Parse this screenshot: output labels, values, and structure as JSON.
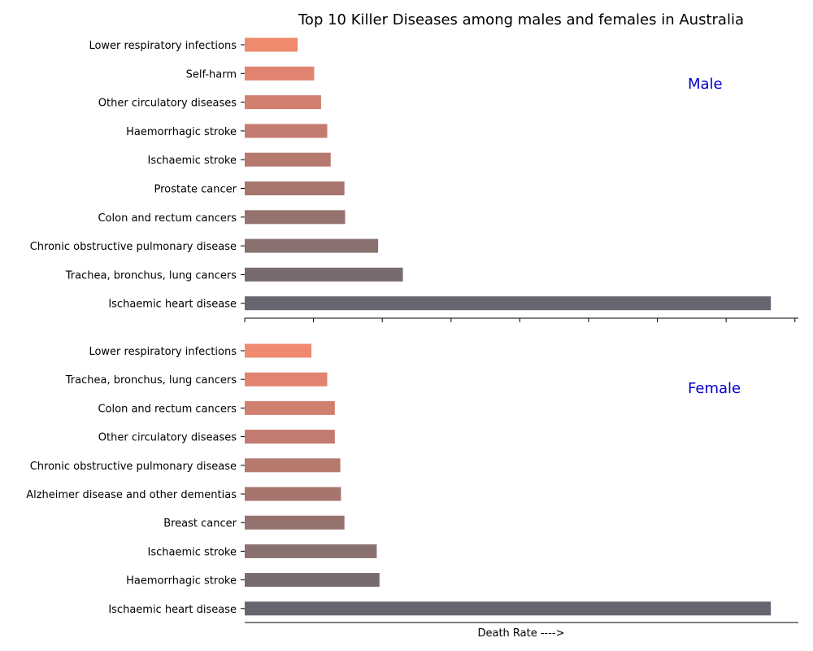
{
  "chart_data": [
    {
      "type": "bar",
      "orientation": "horizontal",
      "title": "Top 10 Killer Diseases among males and females in Australia",
      "annotation": "Male",
      "annotation_color": "#0000cc",
      "categories": [
        "Lower respiratory infections",
        "Self-harm",
        "Other circulatory diseases",
        "Haemorrhagic stroke",
        "Ischaemic stroke",
        "Prostate cancer",
        "Colon and rectum cancers",
        "Chronic obstructive pulmonary disease",
        "Trachea, bronchus, lung cancers",
        "Ischaemic heart disease"
      ],
      "values": [
        77,
        101,
        111,
        120,
        125,
        145,
        146,
        194,
        230,
        765
      ],
      "bar_colors": [
        "#ef8a6f",
        "#e0846f",
        "#d17f6f",
        "#c37b6f",
        "#b5796e",
        "#a6766e",
        "#97736f",
        "#88716f",
        "#786b70",
        "#676670"
      ],
      "xlim": [
        0,
        805
      ],
      "xlabel": "",
      "grid": false
    },
    {
      "type": "bar",
      "orientation": "horizontal",
      "title": "",
      "annotation": "Female",
      "annotation_color": "#0000cc",
      "categories": [
        "Lower respiratory infections",
        "Trachea, bronchus, lung cancers",
        "Colon and rectum cancers",
        "Other circulatory diseases",
        "Chronic obstructive pulmonary disease",
        "Alzheimer disease and other dementias",
        "Breast cancer",
        "Ischaemic stroke",
        "Haemorrhagic stroke",
        "Ischaemic heart disease"
      ],
      "values": [
        97,
        120,
        131,
        131,
        139,
        140,
        145,
        192,
        196,
        765
      ],
      "bar_colors": [
        "#ef8a6f",
        "#e0846f",
        "#d17f6f",
        "#c37b6f",
        "#b5796e",
        "#a6766e",
        "#97736f",
        "#88716f",
        "#786b70",
        "#676670"
      ],
      "xlim": [
        0,
        805
      ],
      "xlabel": "Death Rate ---->",
      "grid": false
    }
  ]
}
